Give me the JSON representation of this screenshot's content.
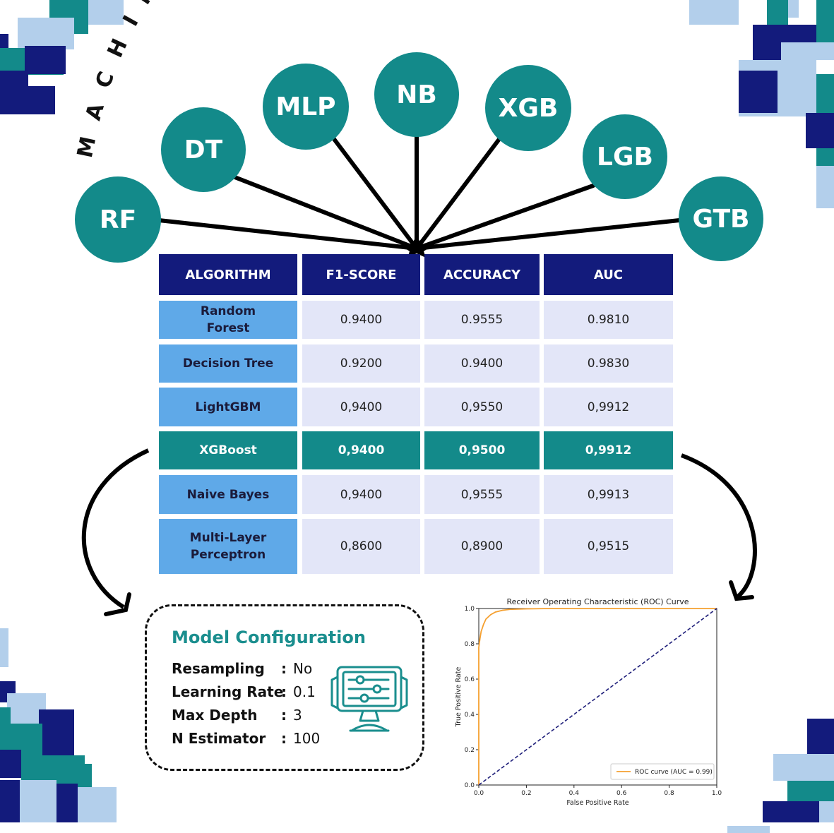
{
  "arc_title": "MACHINE LEARNING ALGORITHM",
  "nodes": [
    "RF",
    "DT",
    "MLP",
    "NB",
    "XGB",
    "LGB",
    "GTB"
  ],
  "table": {
    "headers": [
      "ALGORITHM",
      "F1-SCORE",
      "ACCURACY",
      "AUC"
    ],
    "rows": [
      {
        "algorithm": "Random Forest",
        "f1": "0.9400",
        "accuracy": "0.9555",
        "auc": "0.9810",
        "highlight": false
      },
      {
        "algorithm": "Decision Tree",
        "f1": "0.9200",
        "accuracy": "0.9400",
        "auc": "0.9830",
        "highlight": false
      },
      {
        "algorithm": "LightGBM",
        "f1": "0,9400",
        "accuracy": "0,9550",
        "auc": "0,9912",
        "highlight": false
      },
      {
        "algorithm": "XGBoost",
        "f1": "0,9400",
        "accuracy": "0,9500",
        "auc": "0,9912",
        "highlight": true
      },
      {
        "algorithm": "Naive Bayes",
        "f1": "0,9400",
        "accuracy": "0,9555",
        "auc": "0,9913",
        "highlight": false
      },
      {
        "algorithm": "Multi-Layer Perceptron",
        "f1": "0,8600",
        "accuracy": "0,8900",
        "auc": "0,9515",
        "highlight": false
      }
    ]
  },
  "config": {
    "title": "Model Configuration",
    "items": [
      {
        "key": "Resampling",
        "value": "No"
      },
      {
        "key": "Learning Rate",
        "value": "0.1"
      },
      {
        "key": "Max Depth",
        "value": "3"
      },
      {
        "key": "N Estimator",
        "value": "100"
      }
    ],
    "icon": "monitor-settings-icon"
  },
  "chart_data": {
    "type": "line",
    "title": "Receiver Operating Characteristic (ROC) Curve",
    "xlabel": "False Positive Rate",
    "ylabel": "True Positive Rate",
    "xlim": [
      0,
      1
    ],
    "ylim": [
      0,
      1
    ],
    "xticks": [
      "0.0",
      "0.2",
      "0.4",
      "0.6",
      "0.8",
      "1.0"
    ],
    "yticks": [
      "0.0",
      "0.2",
      "0.4",
      "0.6",
      "0.8",
      "1.0"
    ],
    "legend_position": "bottom-right",
    "series": [
      {
        "name": "ROC curve (AUC = 0.99)",
        "color": "#f5a030",
        "x": [
          0,
          0,
          0.005,
          0.01,
          0.02,
          0.03,
          0.05,
          0.07,
          0.1,
          0.13,
          0.2,
          0.3,
          0.5,
          1.0
        ],
        "y": [
          0,
          0.78,
          0.83,
          0.87,
          0.91,
          0.94,
          0.965,
          0.98,
          0.99,
          0.995,
          0.998,
          1.0,
          1.0,
          1.0
        ]
      },
      {
        "name": "",
        "color": "#1f1f7a",
        "dashed": true,
        "x": [
          0,
          1
        ],
        "y": [
          0,
          1
        ]
      }
    ]
  },
  "colors": {
    "navy": "#131b7c",
    "teal": "#138a8a",
    "light_blue": "#5fa9e8",
    "pale": "#e3e6f8"
  }
}
